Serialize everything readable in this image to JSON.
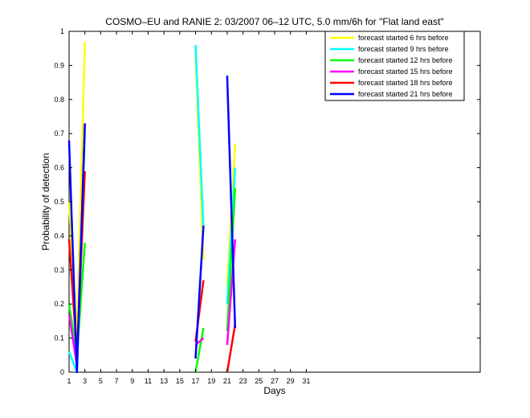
{
  "chart_data": {
    "type": "line",
    "title": "COSMO–EU and RANIE 2: 03/2007 06–12 UTC, 5.0 mm/6h for \"Flat land east\"",
    "xlabel": "Days",
    "ylabel": "Probability of detection",
    "xlim": [
      1,
      53
    ],
    "ylim": [
      0,
      1
    ],
    "xticks": [
      1,
      3,
      5,
      7,
      9,
      11,
      13,
      15,
      17,
      19,
      21,
      23,
      25,
      27,
      29,
      31
    ],
    "yticks": [
      0,
      0.1,
      0.2,
      0.3,
      0.4,
      0.5,
      0.6,
      0.7,
      0.8,
      0.9,
      1
    ],
    "ytick_labels": [
      "0",
      "0.1",
      "0.2",
      "0.3",
      "0.4",
      "0.5",
      "0.6",
      "0.7",
      "0.8",
      "0.9",
      "1"
    ],
    "legend_position": "top-right",
    "series": [
      {
        "name": "forecast started 6 hrs before",
        "color": "#ffff00",
        "segments": [
          [
            [
              1,
              0.5
            ],
            [
              2,
              0.1
            ],
            [
              3,
              0.97
            ]
          ],
          [
            [
              17,
              0.93
            ],
            [
              18,
              0.33
            ]
          ],
          [
            [
              21,
              0.25
            ],
            [
              22,
              0.67
            ]
          ]
        ]
      },
      {
        "name": "forecast started 9 hrs before",
        "color": "#00ffff",
        "segments": [
          [
            [
              1,
              0.06
            ],
            [
              2,
              0.0
            ],
            [
              3,
              0.7
            ]
          ],
          [
            [
              17,
              0.96
            ],
            [
              18,
              0.42
            ]
          ],
          [
            [
              21,
              0.2
            ],
            [
              22,
              0.6
            ]
          ]
        ]
      },
      {
        "name": "forecast started 12 hrs before",
        "color": "#00ff00",
        "segments": [
          [
            [
              1,
              0.2
            ],
            [
              2,
              0.05
            ],
            [
              3,
              0.38
            ]
          ],
          [
            [
              17,
              0.0
            ],
            [
              18,
              0.13
            ]
          ],
          [
            [
              21,
              0.12
            ],
            [
              22,
              0.54
            ]
          ]
        ]
      },
      {
        "name": "forecast started 15 hrs before",
        "color": "#ff00ff",
        "segments": [
          [
            [
              1,
              0.17
            ],
            [
              2,
              0.02
            ],
            [
              3,
              0.73
            ]
          ],
          [
            [
              17,
              0.08
            ],
            [
              18,
              0.1
            ]
          ],
          [
            [
              21,
              0.08
            ],
            [
              22,
              0.39
            ]
          ]
        ]
      },
      {
        "name": "forecast started 18 hrs before",
        "color": "#ff0000",
        "segments": [
          [
            [
              1,
              0.39
            ],
            [
              2,
              0.05
            ],
            [
              3,
              0.59
            ]
          ],
          [
            [
              17,
              0.09
            ],
            [
              18,
              0.27
            ]
          ],
          [
            [
              21,
              0.0
            ],
            [
              22,
              0.14
            ]
          ]
        ]
      },
      {
        "name": "forecast started 21 hrs before",
        "color": "#0000ff",
        "segments": [
          [
            [
              1,
              0.68
            ],
            [
              2,
              0.0
            ],
            [
              3,
              0.73
            ]
          ],
          [
            [
              17,
              0.04
            ],
            [
              18,
              0.43
            ]
          ],
          [
            [
              21,
              0.87
            ],
            [
              22,
              0.13
            ]
          ]
        ]
      }
    ]
  }
}
